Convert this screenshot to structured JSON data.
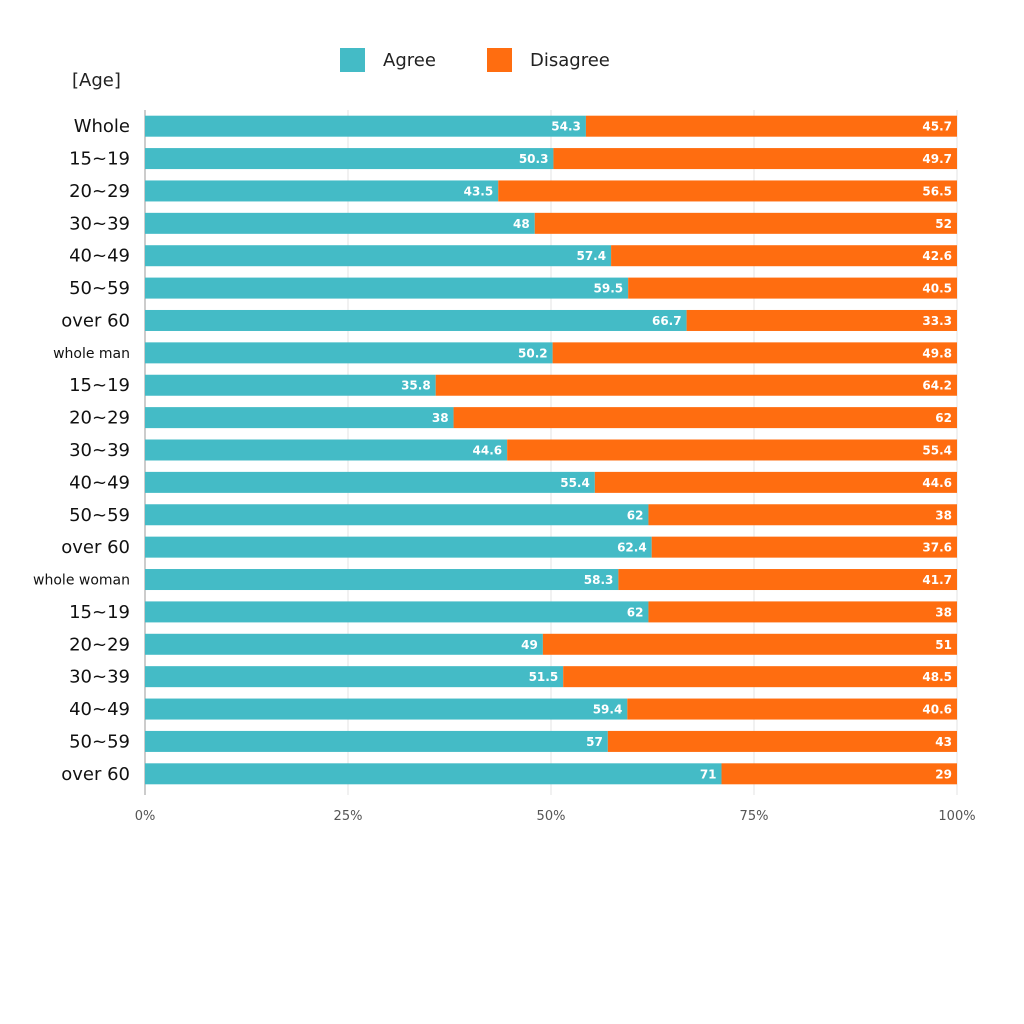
{
  "chart_data": {
    "type": "bar",
    "orientation": "horizontal",
    "stacked": true,
    "percent_stacked": true,
    "ylabel": "[Age]",
    "categories": [
      "Whole",
      "15~19",
      "20~29",
      "30~39",
      "40~49",
      "50~59",
      "over 60",
      "whole man",
      "15~19",
      "20~29",
      "30~39",
      "40~49",
      "50~59",
      "over 60",
      "whole woman",
      "15~19",
      "20~29",
      "30~39",
      "40~49",
      "50~59",
      "over 60"
    ],
    "series": [
      {
        "name": "Agree",
        "color": "#44bbc6",
        "values": [
          54.3,
          50.3,
          43.5,
          48,
          57.4,
          59.5,
          66.7,
          50.2,
          35.8,
          38,
          44.6,
          55.4,
          62,
          62.4,
          58.3,
          62,
          49,
          51.5,
          59.4,
          57,
          71
        ]
      },
      {
        "name": "Disagree",
        "color": "#ff6d10",
        "values": [
          45.7,
          49.7,
          56.5,
          52,
          42.6,
          40.5,
          33.3,
          49.8,
          64.2,
          62,
          55.4,
          44.6,
          38,
          37.6,
          41.7,
          38,
          51,
          48.5,
          40.6,
          43,
          29
        ]
      }
    ],
    "xlim": [
      0,
      100
    ],
    "xticks": [
      "0%",
      "25%",
      "50%",
      "75%",
      "100%"
    ],
    "grid": true,
    "legend": "top"
  }
}
